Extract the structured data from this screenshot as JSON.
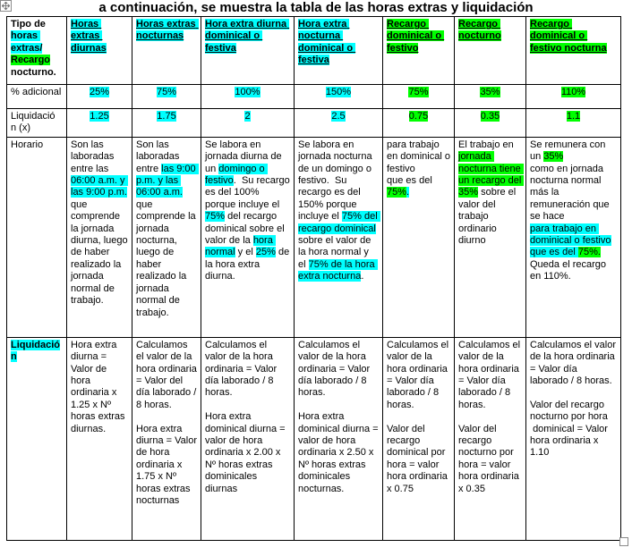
{
  "title": "a continuación, se muestra la tabla de las horas extras y liquidación",
  "colors": {
    "highlight_cyan": "#00ffff",
    "highlight_green": "#00ff00",
    "border": "#000000"
  },
  "table": {
    "header": {
      "tipo": [
        {
          "t": "Tipo de ",
          "hl": null
        },
        {
          "t": "horas extras/",
          "hl": "cyan"
        },
        {
          "t": " ",
          "hl": null
        },
        {
          "t": "Recargo",
          "hl": "green"
        },
        {
          "t": " nocturno.",
          "hl": null
        }
      ],
      "cols": [
        [
          {
            "t": "Horas extras diurnas",
            "hl": "cyan"
          }
        ],
        [
          {
            "t": "Horas extras nocturnas",
            "hl": "cyan"
          }
        ],
        [
          {
            "t": "Hora extra diurna dominical o festiva",
            "hl": "cyan"
          }
        ],
        [
          {
            "t": "Hora extra nocturna dominical o festiva",
            "hl": "cyan"
          }
        ],
        [
          {
            "t": "Recargo dominical o festivo",
            "hl": "green"
          }
        ],
        [
          {
            "t": "Recargo nocturno",
            "hl": "green"
          }
        ],
        [
          {
            "t": "Recargo dominical o festivo nocturna",
            "hl": "green"
          }
        ]
      ]
    },
    "pct": {
      "label": "% adicional",
      "cells": [
        [
          {
            "t": "25%",
            "hl": "cyan"
          }
        ],
        [
          {
            "t": "75%",
            "hl": "cyan"
          }
        ],
        [
          {
            "t": "100%",
            "hl": "cyan"
          }
        ],
        [
          {
            "t": "150%",
            "hl": "cyan"
          }
        ],
        [
          {
            "t": "75%",
            "hl": "green"
          }
        ],
        [
          {
            "t": "35%",
            "hl": "green"
          }
        ],
        [
          {
            "t": "110%",
            "hl": "green"
          }
        ]
      ]
    },
    "factor": {
      "label": "Liquidació\nn (x)",
      "cells": [
        [
          {
            "t": "1.25",
            "hl": "cyan"
          }
        ],
        [
          {
            "t": "1.75",
            "hl": "cyan"
          }
        ],
        [
          {
            "t": "2",
            "hl": "cyan"
          }
        ],
        [
          {
            "t": "2.5",
            "hl": "cyan"
          }
        ],
        [
          {
            "t": "0.75",
            "hl": "green"
          }
        ],
        [
          {
            "t": "0.35",
            "hl": "green"
          }
        ],
        [
          {
            "t": "1.1",
            "hl": "green"
          }
        ]
      ]
    },
    "horario": {
      "label": "Horario",
      "cells": [
        [
          {
            "t": "Son las laboradas entre las ",
            "hl": null
          },
          {
            "t": "06:00 a.m. y las 9:00 p.m.",
            "hl": "cyan"
          },
          {
            "t": " que comprende la jornada diurna, luego de haber realizado la jornada normal de trabajo.",
            "hl": null
          }
        ],
        [
          {
            "t": "Son las laboradas entre ",
            "hl": null
          },
          {
            "t": "las 9:00 p.m. y las 06:00 a.m.",
            "hl": "cyan"
          },
          {
            "t": " que comprende la jornada nocturna, luego de haber realizado la jornada normal de trabajo.",
            "hl": null
          }
        ],
        [
          {
            "t": "Se labora en jornada diurna de un ",
            "hl": null
          },
          {
            "t": "domingo o festivo",
            "hl": "cyan"
          },
          {
            "t": ".  Su recargo es del 100% porque incluye el ",
            "hl": null
          },
          {
            "t": "75%",
            "hl": "cyan"
          },
          {
            "t": " del recargo dominical sobre el valor de la ",
            "hl": null
          },
          {
            "t": "hora normal",
            "hl": "cyan"
          },
          {
            "t": " y el ",
            "hl": null
          },
          {
            "t": "25%",
            "hl": "cyan"
          },
          {
            "t": " de la hora extra diurna.",
            "hl": null
          }
        ],
        [
          {
            "t": "Se labora en jornada nocturna de un domingo o festivo.  Su recargo es del 150% porque incluye el ",
            "hl": null
          },
          {
            "t": "75% del recargo dominical",
            "hl": "cyan"
          },
          {
            "t": " sobre el valor de la hora normal y el ",
            "hl": null
          },
          {
            "t": "75% de la hora extra nocturna",
            "hl": "cyan"
          },
          {
            "t": ".",
            "hl": null
          }
        ],
        [
          {
            "t": "para trabajo en dominical o festivo\nque es del\n",
            "hl": null
          },
          {
            "t": "75%",
            "hl": "green"
          },
          {
            "t": ".",
            "hl": "cyan"
          }
        ],
        [
          {
            "t": "El trabajo en ",
            "hl": null
          },
          {
            "t": "jornada nocturna tiene un recargo del 35%",
            "hl": "green"
          },
          {
            "t": " sobre el valor del trabajo ordinario diurno",
            "hl": null
          }
        ],
        [
          {
            "t": "Se remunera con un ",
            "hl": null
          },
          {
            "t": "35%",
            "hl": "green"
          },
          {
            "t": "\ncomo en jornada nocturna normal más la remuneración que se hace\n",
            "hl": null
          },
          {
            "t": "para trabajo en dominical o festivo",
            "hl": "cyan"
          },
          {
            "t": "\n",
            "hl": null
          },
          {
            "t": "que es del ",
            "hl": "cyan"
          },
          {
            "t": "75%.",
            "hl": "green"
          },
          {
            "t": "\nQueda el recargo en 110%.",
            "hl": null
          }
        ]
      ]
    },
    "liq": {
      "label": [
        {
          "t": "Liquidació\nn",
          "hl": "cyan"
        }
      ],
      "cells": [
        [
          {
            "t": "Hora extra diurna = Valor de hora ordinaria x 1.25 x Nº horas extras diurnas.",
            "hl": null
          }
        ],
        [
          {
            "t": "Calculamos el valor de la hora ordinaria = Valor del día laborado / 8 horas.\n\nHora extra diurna = Valor de hora ordinaria x 1.75 x Nº horas extras nocturnas",
            "hl": null
          }
        ],
        [
          {
            "t": "Calculamos el valor de la hora ordinaria = Valor día laborado / 8 horas.\n\nHora extra dominical diurna = valor de hora ordinaria x 2.00 x Nº horas extras dominicales diurnas",
            "hl": null
          }
        ],
        [
          {
            "t": "Calculamos el valor de la hora ordinaria = Valor día laborado / 8 horas.\n\nHora extra dominical diurna = valor de hora ordinaria x 2.50 x Nº horas extras dominicales nocturnas.",
            "hl": null
          }
        ],
        [
          {
            "t": "Calculamos el valor de la hora ordinaria = Valor día laborado / 8 horas.\n\nValor del recargo dominical por hora = valor hora ordinaria x 0.75",
            "hl": null
          }
        ],
        [
          {
            "t": "Calculamos el valor de la hora ordinaria = Valor día laborado / 8 horas.\n\nValor del recargo nocturno por hora = valor hora ordinaria x 0.35",
            "hl": null
          }
        ],
        [
          {
            "t": "Calculamos el valor de la hora ordinaria\n= Valor día laborado / 8 horas.\n\nValor del recargo nocturno por hora\n dominical = Valor hora ordinaria x 1.10",
            "hl": null
          }
        ]
      ]
    }
  }
}
